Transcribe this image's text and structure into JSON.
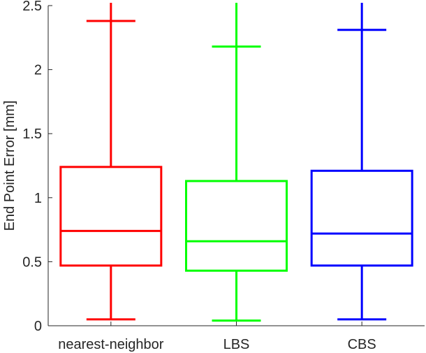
{
  "chart_data": {
    "type": "box",
    "title": "",
    "xlabel": "",
    "ylabel": "End Point Error [mm]",
    "ylim": [
      0,
      2.5
    ],
    "yticks": [
      0,
      0.5,
      1,
      1.5,
      2,
      2.5
    ],
    "ytick_labels": [
      "0",
      "0.5",
      "1",
      "1.5",
      "2",
      "2.5"
    ],
    "grid": false,
    "legend": "none",
    "categories": [
      "nearest-neighbor",
      "LBS",
      "CBS"
    ],
    "boxes": [
      {
        "category": "nearest-neighbor",
        "color": "#ff0000",
        "whisker_low": 0.05,
        "q1": 0.47,
        "median": 0.74,
        "q3": 1.24,
        "whisker_high": 2.38,
        "whisker_high_extends_beyond_axis": true
      },
      {
        "category": "LBS",
        "color": "#00ff00",
        "whisker_low": 0.04,
        "q1": 0.43,
        "median": 0.66,
        "q3": 1.13,
        "whisker_high": 2.18,
        "whisker_high_extends_beyond_axis": true
      },
      {
        "category": "CBS",
        "color": "#0000ff",
        "whisker_low": 0.05,
        "q1": 0.47,
        "median": 0.72,
        "q3": 1.21,
        "whisker_high": 2.31,
        "whisker_high_extends_beyond_axis": true
      }
    ]
  }
}
